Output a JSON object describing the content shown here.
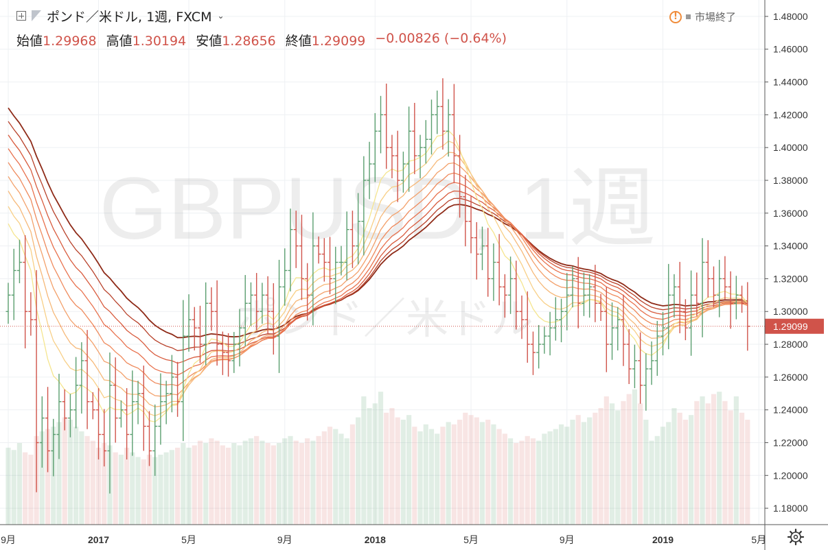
{
  "header": {
    "symbol_title": "ポンド／米ドル, 1週, FXCM",
    "ohlc": [
      {
        "label": "始値",
        "value": "1.29968"
      },
      {
        "label": "高値",
        "value": "1.30194"
      },
      {
        "label": "安値",
        "value": "1.28656"
      },
      {
        "label": "終値",
        "value": "1.29099"
      },
      {
        "label": "",
        "value": "−0.00826 (−0.64%)"
      }
    ],
    "market_status": "市場終了"
  },
  "watermark": {
    "main": "GBPUSD, 1週",
    "sub": "ポンド／米ドル"
  },
  "colors": {
    "up": "#5a9e6f",
    "down": "#d0534a",
    "price_line": "#d0534a",
    "last_price_bg": "#d0534a"
  },
  "icons": {
    "add": "plus-box-icon",
    "flag": "flag-icon",
    "dropdown": "chevron-down-icon",
    "warning": "warning-icon",
    "settings": "gear-icon"
  },
  "chart_data": {
    "type": "candlestick",
    "interval": "1週",
    "ylim": [
      1.17,
      1.49
    ],
    "y_ticks": [
      "1.18000",
      "1.20000",
      "1.22000",
      "1.24000",
      "1.26000",
      "1.28000",
      "1.30000",
      "1.32000",
      "1.34000",
      "1.36000",
      "1.38000",
      "1.40000",
      "1.42000",
      "1.44000",
      "1.46000",
      "1.48000"
    ],
    "x_ticks": [
      {
        "label": "9月",
        "bar": 0
      },
      {
        "label": "2017",
        "bar": 16
      },
      {
        "label": "5月",
        "bar": 32
      },
      {
        "label": "9月",
        "bar": 49
      },
      {
        "label": "2018",
        "bar": 65
      },
      {
        "label": "5月",
        "bar": 82
      },
      {
        "label": "9月",
        "bar": 99
      },
      {
        "label": "2019",
        "bar": 116
      },
      {
        "label": "5月",
        "bar": 133
      }
    ],
    "last_price": "1.29099",
    "close": [
      1.31,
      1.325,
      1.33,
      1.3,
      1.295,
      1.22,
      1.235,
      1.215,
      1.225,
      1.245,
      1.235,
      1.24,
      1.255,
      1.27,
      1.245,
      1.24,
      1.225,
      1.215,
      1.255,
      1.235,
      1.24,
      1.225,
      1.245,
      1.25,
      1.23,
      1.215,
      1.23,
      1.245,
      1.25,
      1.26,
      1.245,
      1.285,
      1.295,
      1.29,
      1.28,
      1.305,
      1.3,
      1.28,
      1.275,
      1.27,
      1.28,
      1.29,
      1.305,
      1.31,
      1.3,
      1.31,
      1.3,
      1.285,
      1.315,
      1.325,
      1.35,
      1.34,
      1.32,
      1.31,
      1.34,
      1.335,
      1.33,
      1.32,
      1.33,
      1.33,
      1.35,
      1.34,
      1.355,
      1.38,
      1.39,
      1.41,
      1.42,
      1.4,
      1.395,
      1.38,
      1.39,
      1.41,
      1.395,
      1.4,
      1.405,
      1.42,
      1.425,
      1.41,
      1.42,
      1.395,
      1.37,
      1.355,
      1.345,
      1.335,
      1.34,
      1.32,
      1.33,
      1.315,
      1.31,
      1.32,
      1.3,
      1.295,
      1.28,
      1.275,
      1.28,
      1.285,
      1.29,
      1.295,
      1.3,
      1.31,
      1.32,
      1.305,
      1.31,
      1.315,
      1.305,
      1.3,
      1.28,
      1.29,
      1.295,
      1.28,
      1.265,
      1.27,
      1.255,
      1.265,
      1.27,
      1.285,
      1.29,
      1.31,
      1.315,
      1.3,
      1.29,
      1.31,
      1.305,
      1.33,
      1.32,
      1.31,
      1.32,
      1.315,
      1.305,
      1.31,
      1.305,
      1.29099
    ],
    "volume": [
      0.33,
      0.32,
      0.35,
      0.31,
      0.3,
      0.38,
      0.4,
      0.41,
      0.42,
      0.44,
      0.46,
      0.45,
      0.42,
      0.4,
      0.38,
      0.36,
      0.33,
      0.35,
      0.34,
      0.31,
      0.3,
      0.33,
      0.31,
      0.29,
      0.28,
      0.3,
      0.29,
      0.3,
      0.31,
      0.32,
      0.33,
      0.35,
      0.33,
      0.34,
      0.36,
      0.35,
      0.37,
      0.36,
      0.34,
      0.33,
      0.35,
      0.34,
      0.36,
      0.37,
      0.38,
      0.36,
      0.35,
      0.34,
      0.35,
      0.37,
      0.38,
      0.36,
      0.35,
      0.37,
      0.36,
      0.38,
      0.4,
      0.42,
      0.41,
      0.39,
      0.37,
      0.43,
      0.46,
      0.55,
      0.5,
      0.52,
      0.57,
      0.48,
      0.5,
      0.46,
      0.45,
      0.47,
      0.42,
      0.4,
      0.43,
      0.41,
      0.39,
      0.42,
      0.44,
      0.43,
      0.45,
      0.48,
      0.47,
      0.46,
      0.44,
      0.45,
      0.43,
      0.41,
      0.39,
      0.37,
      0.35,
      0.36,
      0.38,
      0.37,
      0.36,
      0.39,
      0.4,
      0.41,
      0.43,
      0.42,
      0.45,
      0.47,
      0.44,
      0.46,
      0.48,
      0.5,
      0.55,
      0.52,
      0.49,
      0.53,
      0.56,
      0.58,
      0.52,
      0.45,
      0.36,
      0.38,
      0.42,
      0.44,
      0.5,
      0.48,
      0.45,
      0.47,
      0.53,
      0.55,
      0.52,
      0.56,
      0.57,
      0.53,
      0.49,
      0.55,
      0.48,
      0.45
    ]
  }
}
